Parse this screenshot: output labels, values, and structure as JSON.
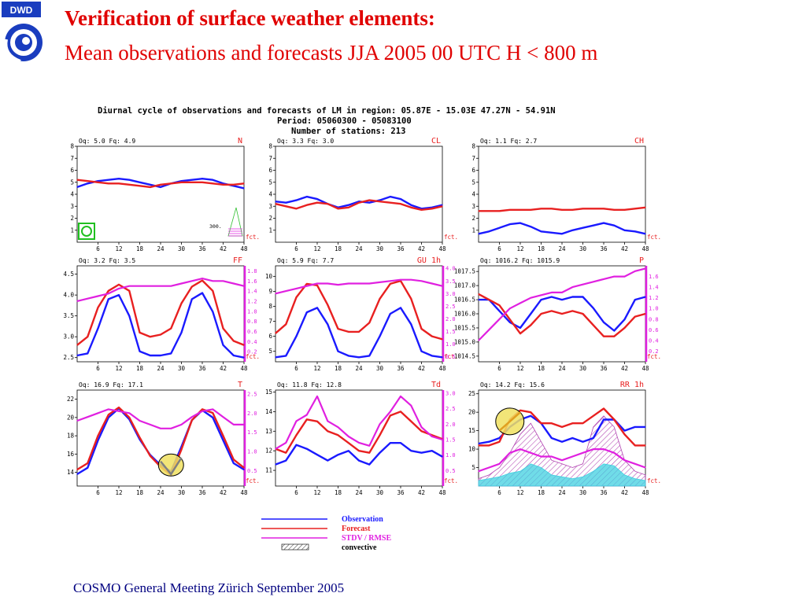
{
  "slide": {
    "logo_text": "DWD",
    "title_line1": "Verification of surface weather elements:",
    "title_line2": "Mean observations and forecasts JJA 2005 00 UTC H < 800 m",
    "footer": "COSMO General Meeting  Zürich September 2005",
    "figure_title": "Diurnal cycle of observations and forecasts of LM  in region: 05.87E - 15.03E 47.27N - 54.91N",
    "figure_period": "Period: 05060300 - 05083100",
    "figure_stations": "Number of stations: 213",
    "fct_label": "fct."
  },
  "colors": {
    "observation": "#1a1aff",
    "forecast": "#e82020",
    "stdv": "#e020e0",
    "title": "#e00000",
    "footer": "#000080",
    "convective_hatch": "#b040b0",
    "cyan_fill": "#40d0e0",
    "highlight": "#f0e060"
  },
  "legend": {
    "items": [
      {
        "label": "Observation",
        "color": "#1a1aff"
      },
      {
        "label": "Forecast",
        "color": "#e82020"
      },
      {
        "label": "STDV / RMSE",
        "color": "#e020e0"
      },
      {
        "label": "convective",
        "color": "#555555"
      }
    ]
  },
  "chart_data": [
    {
      "type": "line",
      "name": "N",
      "header": "Oq:   5.0 Fq:   4.9",
      "x": [
        0,
        3,
        6,
        9,
        12,
        15,
        18,
        21,
        24,
        27,
        30,
        33,
        36,
        39,
        42,
        45,
        48
      ],
      "xticks": [
        6,
        12,
        18,
        24,
        30,
        36,
        42,
        48
      ],
      "ylim": [
        0,
        8
      ],
      "yticks": [
        1,
        2,
        3,
        4,
        5,
        6,
        7,
        8
      ],
      "ytick_labels": [
        "1",
        "2",
        "3",
        "4",
        "5",
        "6",
        "7",
        "8"
      ],
      "series": [
        {
          "name": "Observation",
          "values": [
            4.6,
            4.9,
            5.1,
            5.2,
            5.3,
            5.2,
            5.0,
            4.8,
            4.6,
            4.9,
            5.1,
            5.2,
            5.3,
            5.2,
            4.9,
            4.7,
            4.5
          ]
        },
        {
          "name": "Forecast",
          "values": [
            5.2,
            5.1,
            5.0,
            4.9,
            4.9,
            4.8,
            4.7,
            4.6,
            4.8,
            4.9,
            5.0,
            5.0,
            5.0,
            4.9,
            4.8,
            4.8,
            4.9
          ]
        }
      ],
      "annotation": "300."
    },
    {
      "type": "line",
      "name": "CL",
      "header": "Oq:   3.3 Fq:   3.0",
      "x": [
        0,
        3,
        6,
        9,
        12,
        15,
        18,
        21,
        24,
        27,
        30,
        33,
        36,
        39,
        42,
        45,
        48
      ],
      "xticks": [
        6,
        12,
        18,
        24,
        30,
        36,
        42,
        48
      ],
      "ylim": [
        0,
        8
      ],
      "yticks": [
        1,
        2,
        3,
        4,
        5,
        6,
        7,
        8
      ],
      "ytick_labels": [
        "1",
        "2",
        "3",
        "4",
        "5",
        "6",
        "7",
        "8"
      ],
      "series": [
        {
          "name": "Observation",
          "values": [
            3.4,
            3.3,
            3.5,
            3.8,
            3.6,
            3.2,
            2.9,
            3.1,
            3.4,
            3.3,
            3.5,
            3.8,
            3.6,
            3.1,
            2.8,
            2.9,
            3.1
          ]
        },
        {
          "name": "Forecast",
          "values": [
            3.2,
            3.0,
            2.8,
            3.1,
            3.3,
            3.2,
            2.8,
            2.9,
            3.3,
            3.5,
            3.4,
            3.3,
            3.2,
            2.9,
            2.7,
            2.8,
            3.0
          ]
        }
      ]
    },
    {
      "type": "line",
      "name": "CH",
      "header": "Oq:   1.1 Fq:   2.7",
      "x": [
        0,
        3,
        6,
        9,
        12,
        15,
        18,
        21,
        24,
        27,
        30,
        33,
        36,
        39,
        42,
        45,
        48
      ],
      "xticks": [
        6,
        12,
        18,
        24,
        30,
        36,
        42,
        48
      ],
      "ylim": [
        0,
        8
      ],
      "yticks": [
        1,
        2,
        3,
        4,
        5,
        6,
        7,
        8
      ],
      "ytick_labels": [
        "1",
        "2",
        "3",
        "4",
        "5",
        "6",
        "7",
        "8"
      ],
      "series": [
        {
          "name": "Observation",
          "values": [
            0.7,
            0.9,
            1.2,
            1.5,
            1.6,
            1.3,
            0.9,
            0.8,
            0.7,
            1.0,
            1.2,
            1.4,
            1.6,
            1.4,
            1.0,
            0.9,
            0.7
          ]
        },
        {
          "name": "Forecast",
          "values": [
            2.6,
            2.6,
            2.6,
            2.7,
            2.7,
            2.7,
            2.8,
            2.8,
            2.7,
            2.7,
            2.8,
            2.8,
            2.8,
            2.7,
            2.7,
            2.8,
            2.9
          ]
        }
      ]
    },
    {
      "type": "line",
      "name": "FF",
      "header": "Oq:   3.2 Fq:   3.5",
      "x": [
        0,
        3,
        6,
        9,
        12,
        15,
        18,
        21,
        24,
        27,
        30,
        33,
        36,
        39,
        42,
        45,
        48
      ],
      "xticks": [
        6,
        12,
        18,
        24,
        30,
        36,
        42,
        48
      ],
      "ylim": [
        2.4,
        4.7
      ],
      "yticks": [
        2.5,
        3.0,
        3.5,
        4.0,
        4.5
      ],
      "ytick_labels": [
        "2.5",
        "3.0",
        "3.5",
        "4.0",
        "4.5"
      ],
      "y2ticks": [
        0.2,
        0.4,
        0.6,
        0.8,
        1.0,
        1.2,
        1.4,
        1.6,
        1.8
      ],
      "y2lim": [
        0,
        1.9
      ],
      "series": [
        {
          "name": "Observation",
          "values": [
            2.55,
            2.6,
            3.2,
            3.9,
            4.0,
            3.5,
            2.65,
            2.55,
            2.55,
            2.6,
            3.1,
            3.9,
            4.05,
            3.6,
            2.8,
            2.55,
            2.5
          ]
        },
        {
          "name": "Forecast",
          "values": [
            2.8,
            3.0,
            3.7,
            4.1,
            4.25,
            4.1,
            3.1,
            3.0,
            3.05,
            3.2,
            3.8,
            4.2,
            4.35,
            4.1,
            3.2,
            2.9,
            2.8
          ]
        },
        {
          "name": "STDV / RMSE",
          "axis": "right",
          "values": [
            1.2,
            1.25,
            1.3,
            1.35,
            1.45,
            1.5,
            1.5,
            1.5,
            1.5,
            1.5,
            1.55,
            1.6,
            1.65,
            1.6,
            1.6,
            1.55,
            1.5
          ]
        }
      ]
    },
    {
      "type": "line",
      "name": "GU 1h",
      "header": "Oq:   5.9 Fq:   7.7",
      "x": [
        0,
        3,
        6,
        9,
        12,
        15,
        18,
        21,
        24,
        27,
        30,
        33,
        36,
        39,
        42,
        45,
        48
      ],
      "xticks": [
        6,
        12,
        18,
        24,
        30,
        36,
        42,
        48
      ],
      "ylim": [
        4.3,
        10.7
      ],
      "yticks": [
        5,
        6,
        7,
        8,
        9,
        10
      ],
      "ytick_labels": [
        "5",
        "6",
        "7",
        "8",
        "9",
        "10"
      ],
      "y2ticks": [
        0.5,
        1.0,
        1.5,
        2.0,
        2.5,
        3.0,
        3.5,
        4.0
      ],
      "y2lim": [
        0.3,
        4.1
      ],
      "series": [
        {
          "name": "Observation",
          "values": [
            4.6,
            4.7,
            6.0,
            7.6,
            7.9,
            6.8,
            5.0,
            4.7,
            4.6,
            4.7,
            6.0,
            7.5,
            7.9,
            6.8,
            5.0,
            4.7,
            4.6
          ]
        },
        {
          "name": "Forecast",
          "values": [
            6.2,
            6.8,
            8.6,
            9.5,
            9.4,
            8.1,
            6.5,
            6.3,
            6.3,
            6.9,
            8.5,
            9.5,
            9.7,
            8.5,
            6.5,
            6.0,
            5.8
          ]
        },
        {
          "name": "STDV / RMSE",
          "axis": "right",
          "values": [
            3.0,
            3.1,
            3.2,
            3.3,
            3.4,
            3.4,
            3.35,
            3.4,
            3.4,
            3.4,
            3.45,
            3.5,
            3.55,
            3.55,
            3.5,
            3.4,
            3.3
          ]
        }
      ]
    },
    {
      "type": "line",
      "name": "P",
      "header": "Oq: 1016.2 Fq: 1015.9",
      "x": [
        0,
        3,
        6,
        9,
        12,
        15,
        18,
        21,
        24,
        27,
        30,
        33,
        36,
        39,
        42,
        45,
        48
      ],
      "xticks": [
        6,
        12,
        18,
        24,
        30,
        36,
        42,
        48
      ],
      "ylim": [
        1014.3,
        1017.7
      ],
      "yticks": [
        1014.5,
        1015.0,
        1015.5,
        1016.0,
        1016.5,
        1017.0,
        1017.5
      ],
      "ytick_labels": [
        "1014.5",
        "1015.0",
        "1015.5",
        "1016.0",
        "1016.5",
        "1017.0",
        "1017.5"
      ],
      "y2ticks": [
        0.2,
        0.4,
        0.6,
        0.8,
        1.0,
        1.2,
        1.4,
        1.6
      ],
      "y2lim": [
        0,
        1.8
      ],
      "series": [
        {
          "name": "Observation",
          "values": [
            1016.5,
            1016.5,
            1016.1,
            1015.7,
            1015.5,
            1016.0,
            1016.5,
            1016.6,
            1016.5,
            1016.6,
            1016.6,
            1016.2,
            1015.7,
            1015.4,
            1015.8,
            1016.5,
            1016.6
          ]
        },
        {
          "name": "Forecast",
          "values": [
            1016.7,
            1016.5,
            1016.3,
            1015.8,
            1015.3,
            1015.6,
            1016.0,
            1016.1,
            1016.0,
            1016.1,
            1016.0,
            1015.6,
            1015.2,
            1015.2,
            1015.5,
            1015.9,
            1016.0
          ]
        },
        {
          "name": "STDV / RMSE",
          "axis": "right",
          "values": [
            0.4,
            0.6,
            0.8,
            1.0,
            1.1,
            1.2,
            1.25,
            1.3,
            1.3,
            1.4,
            1.45,
            1.5,
            1.55,
            1.6,
            1.6,
            1.7,
            1.75
          ]
        }
      ]
    },
    {
      "type": "line",
      "name": "T",
      "header": "Oq:  16.9 Fq:  17.1",
      "x": [
        0,
        3,
        6,
        9,
        12,
        15,
        18,
        21,
        24,
        27,
        30,
        33,
        36,
        39,
        42,
        45,
        48
      ],
      "xticks": [
        6,
        12,
        18,
        24,
        30,
        36,
        42,
        48
      ],
      "ylim": [
        12.5,
        23
      ],
      "yticks": [
        14,
        16,
        18,
        20,
        22
      ],
      "ytick_labels": [
        "14",
        "16",
        "18",
        "20",
        "22"
      ],
      "y2ticks": [
        0.5,
        1.0,
        1.5,
        2.0,
        2.5
      ],
      "y2lim": [
        0.1,
        2.6
      ],
      "series": [
        {
          "name": "Observation",
          "values": [
            13.8,
            14.5,
            17.5,
            20.0,
            21.0,
            19.8,
            17.6,
            15.9,
            14.8,
            14.1,
            16.8,
            19.7,
            20.8,
            20.0,
            17.5,
            15.0,
            14.3
          ]
        },
        {
          "name": "Forecast",
          "values": [
            14.3,
            15.0,
            18.0,
            20.3,
            21.1,
            20.0,
            17.8,
            15.8,
            14.6,
            13.7,
            16.5,
            19.7,
            20.9,
            20.5,
            18.0,
            15.4,
            14.5
          ]
        },
        {
          "name": "STDV / RMSE",
          "axis": "right",
          "values": [
            1.8,
            1.9,
            2.0,
            2.1,
            2.05,
            2.0,
            1.8,
            1.7,
            1.6,
            1.6,
            1.7,
            1.9,
            2.05,
            2.1,
            1.9,
            1.7,
            1.7
          ]
        }
      ]
    },
    {
      "type": "line",
      "name": "Td",
      "header": "Oq:  11.8 Fq:  12.8",
      "x": [
        0,
        3,
        6,
        9,
        12,
        15,
        18,
        21,
        24,
        27,
        30,
        33,
        36,
        39,
        42,
        45,
        48
      ],
      "xticks": [
        6,
        12,
        18,
        24,
        30,
        36,
        42,
        48
      ],
      "ylim": [
        10.2,
        15.1
      ],
      "yticks": [
        11,
        12,
        13,
        14,
        15
      ],
      "ytick_labels": [
        "11",
        "12",
        "13",
        "14",
        "15"
      ],
      "y2ticks": [
        0.5,
        1.0,
        1.5,
        2.0,
        2.5,
        3.0
      ],
      "y2lim": [
        0,
        3.1
      ],
      "series": [
        {
          "name": "Observation",
          "values": [
            11.3,
            11.5,
            12.3,
            12.1,
            11.8,
            11.5,
            11.8,
            12.0,
            11.5,
            11.3,
            11.9,
            12.4,
            12.4,
            12.0,
            11.9,
            12.0,
            11.7
          ]
        },
        {
          "name": "Forecast",
          "values": [
            12.1,
            11.9,
            12.8,
            13.6,
            13.5,
            13.0,
            12.8,
            12.4,
            12.0,
            11.9,
            12.8,
            13.8,
            14.0,
            13.5,
            13.0,
            12.8,
            12.6
          ]
        },
        {
          "name": "STDV / RMSE",
          "axis": "right",
          "values": [
            1.2,
            1.4,
            2.1,
            2.3,
            2.9,
            2.1,
            1.9,
            1.6,
            1.4,
            1.3,
            2.0,
            2.4,
            2.9,
            2.6,
            1.9,
            1.6,
            1.5
          ]
        }
      ]
    },
    {
      "type": "area",
      "name": "RR 1h",
      "header": "Oq:  14.2 Fq:  15.6",
      "x": [
        0,
        3,
        6,
        9,
        12,
        15,
        18,
        21,
        24,
        27,
        30,
        33,
        36,
        39,
        42,
        45,
        48
      ],
      "xticks": [
        6,
        12,
        18,
        24,
        30,
        36,
        42,
        48
      ],
      "ylim": [
        0,
        26
      ],
      "yticks": [
        5,
        10,
        15,
        20,
        25
      ],
      "ytick_labels": [
        "5",
        "10",
        "15",
        "20",
        "25"
      ],
      "series": [
        {
          "name": "Observation",
          "values": [
            11.5,
            12,
            13,
            16,
            18,
            19,
            17,
            13,
            12,
            13,
            12,
            13,
            18,
            18,
            15,
            16,
            16
          ]
        },
        {
          "name": "Forecast",
          "values": [
            11,
            11,
            12,
            18,
            20.5,
            20,
            17,
            17,
            16,
            17,
            17,
            19,
            21,
            18,
            14,
            11,
            11
          ]
        },
        {
          "name": "STDV / RMSE",
          "values": [
            4,
            5,
            6,
            9,
            10,
            9,
            8,
            8,
            7,
            8,
            9,
            10,
            10,
            9,
            7,
            6,
            5
          ]
        },
        {
          "name": "convective",
          "values": [
            2,
            3,
            5,
            9,
            14,
            17,
            12,
            7,
            6,
            5,
            6,
            16,
            19,
            16,
            7,
            4,
            3
          ]
        },
        {
          "name": "cyan",
          "values": [
            1.5,
            2,
            2.5,
            3.5,
            4,
            6,
            5,
            3,
            2.5,
            2,
            2.5,
            4,
            6,
            5.5,
            3,
            2,
            1.5
          ]
        }
      ]
    }
  ]
}
